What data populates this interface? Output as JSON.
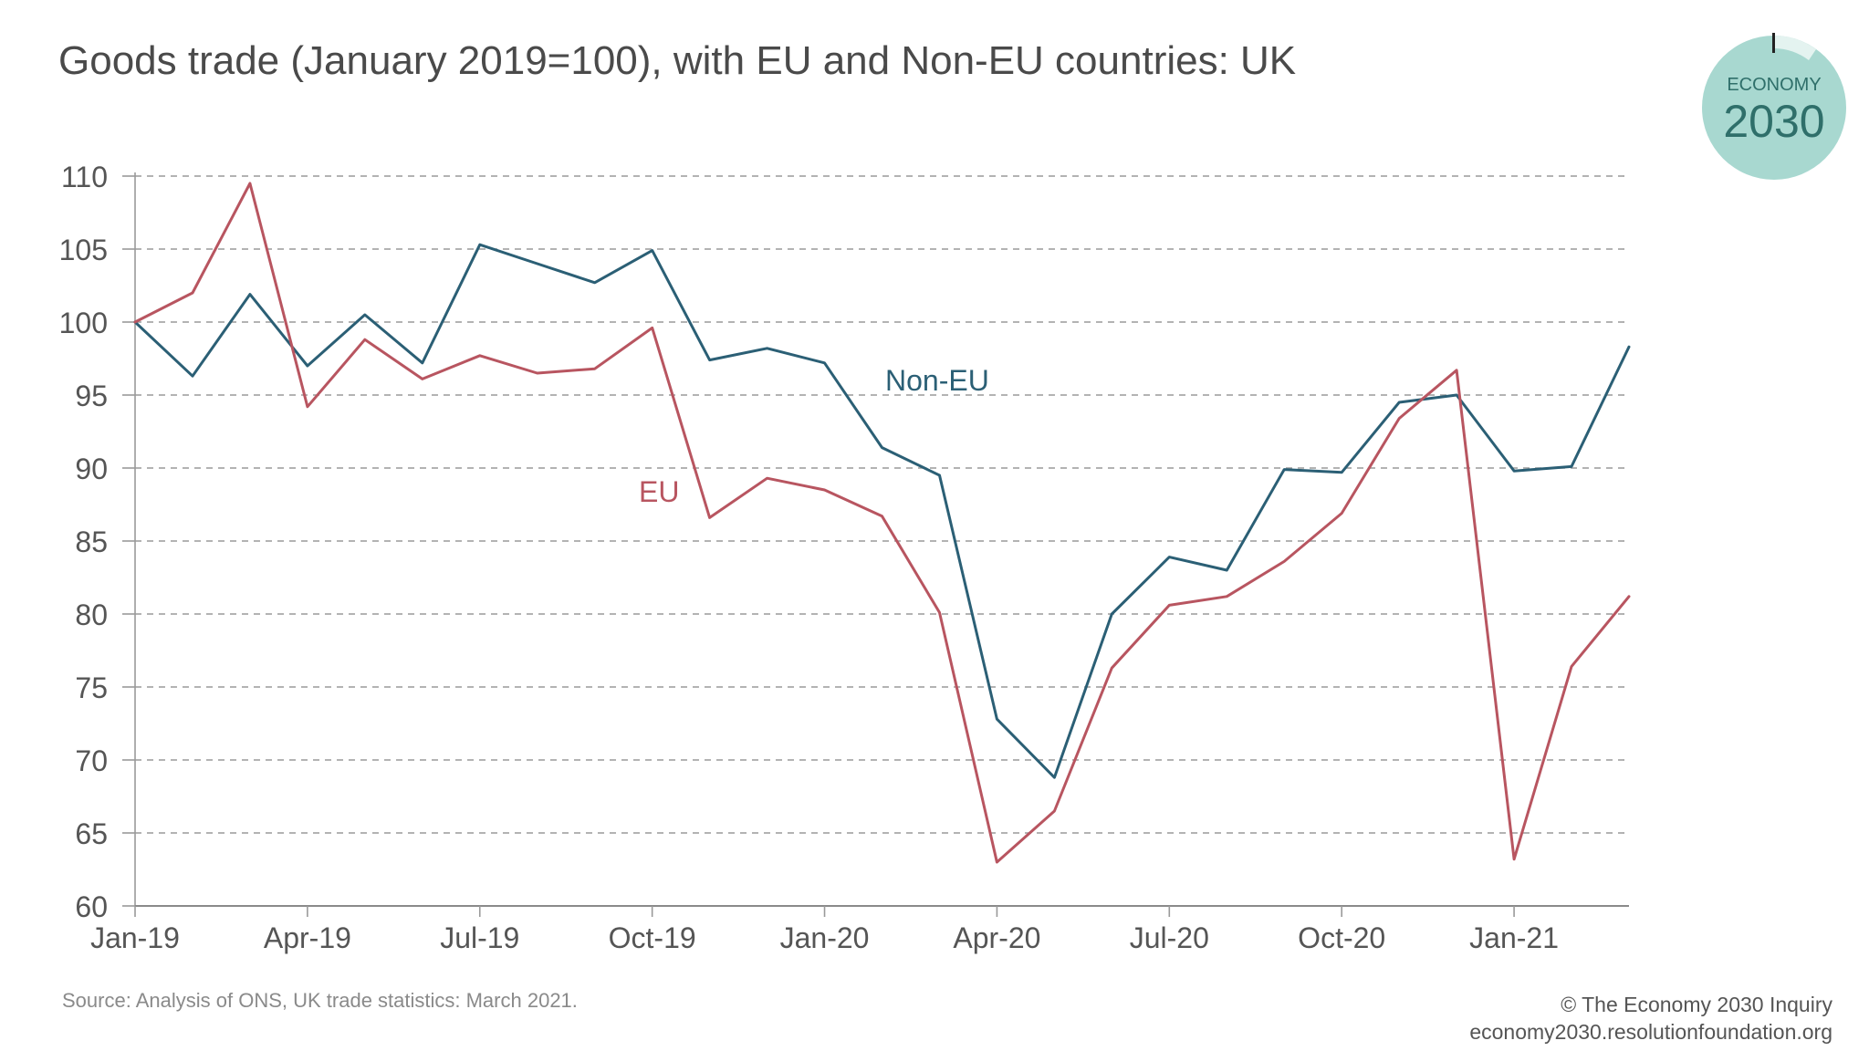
{
  "title": "Goods trade (January 2019=100), with EU and Non-EU countries: UK",
  "logo": {
    "line1": "ECONOMY",
    "line2": "2030",
    "color": "#a8d8d0",
    "text_color": "#2f6f6a"
  },
  "footer": {
    "source": "Source: Analysis of ONS, UK trade statistics: March 2021.",
    "credit_line1": "© The Economy 2030 Inquiry",
    "credit_line2": "economy2030.resolutionfoundation.org"
  },
  "chart_data": {
    "type": "line",
    "title": "Goods trade (January 2019=100), with EU and Non-EU countries: UK",
    "xlabel": "",
    "ylabel": "",
    "ylim": [
      60,
      110
    ],
    "yticks": [
      60,
      65,
      70,
      75,
      80,
      85,
      90,
      95,
      100,
      105,
      110
    ],
    "grid": true,
    "x": [
      "Jan-19",
      "Feb-19",
      "Mar-19",
      "Apr-19",
      "May-19",
      "Jun-19",
      "Jul-19",
      "Aug-19",
      "Sep-19",
      "Oct-19",
      "Nov-19",
      "Dec-19",
      "Jan-20",
      "Feb-20",
      "Mar-20",
      "Apr-20",
      "May-20",
      "Jun-20",
      "Jul-20",
      "Aug-20",
      "Sep-20",
      "Oct-20",
      "Nov-20",
      "Dec-20",
      "Jan-21",
      "Feb-21",
      "Mar-21"
    ],
    "xtick_labels": [
      "Jan-19",
      "Apr-19",
      "Jul-19",
      "Oct-19",
      "Jan-20",
      "Apr-20",
      "Jul-20",
      "Oct-20",
      "Jan-21"
    ],
    "xtick_indices": [
      0,
      3,
      6,
      9,
      12,
      15,
      18,
      21,
      24
    ],
    "series": [
      {
        "name": "Non-EU",
        "color": "#2b5f75",
        "values": [
          100,
          96.3,
          101.9,
          97.0,
          100.5,
          97.2,
          105.3,
          104.0,
          102.7,
          104.9,
          97.4,
          98.2,
          97.2,
          91.4,
          89.5,
          72.8,
          68.8,
          80.0,
          83.9,
          83.0,
          89.9,
          89.7,
          94.5,
          95.0,
          89.8,
          90.1,
          98.3
        ],
        "label_at": [
          13.0,
          93.9
        ]
      },
      {
        "name": "EU",
        "color": "#b85560",
        "values": [
          100,
          102.0,
          109.5,
          94.2,
          98.8,
          96.1,
          97.7,
          96.5,
          96.8,
          99.6,
          86.6,
          89.3,
          88.5,
          86.7,
          80.1,
          63.0,
          66.5,
          76.3,
          80.6,
          81.2,
          83.6,
          86.9,
          93.4,
          96.7,
          63.2,
          76.4,
          81.2
        ]
      }
    ]
  }
}
